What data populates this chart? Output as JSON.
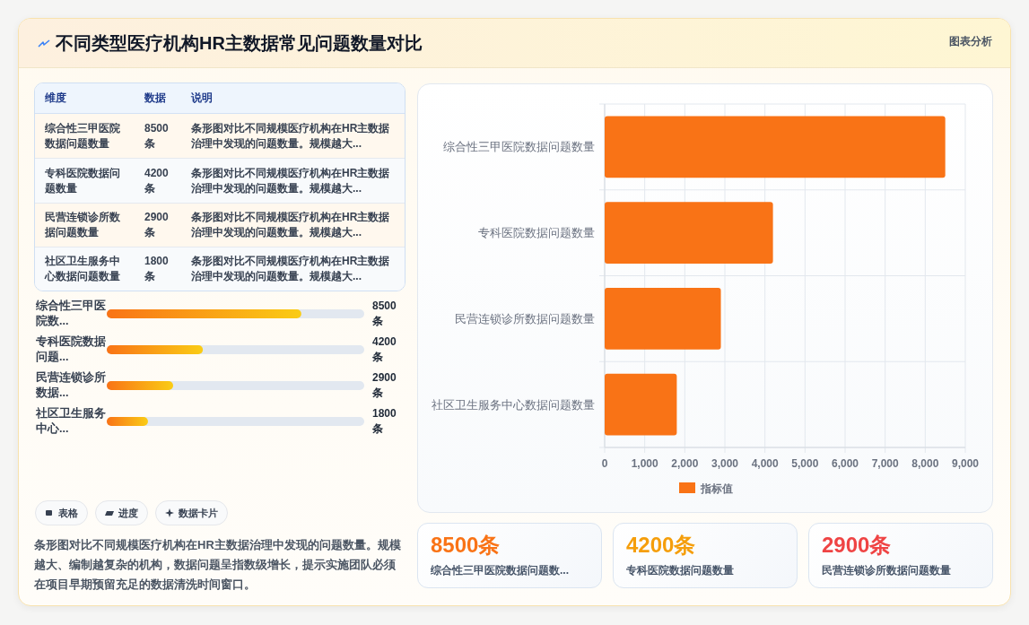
{
  "chart_data": [
    {
      "type": "other",
      "title": "不同类型医疗机构HR主数据常见问题数量对比",
      "annotations": [
        "图表分析"
      ],
      "categories": [
        "维度",
        "数据",
        "说明"
      ],
      "cell_labels": [
        [
          "综合性三甲医院数据问题数量",
          "8500条",
          "条形图对比不同规模医疗机构在HR主数据治理中发现的问题数量。规模越大..."
        ],
        [
          "专科医院数据问题数量",
          "4200条",
          "条形图对比不同规模医疗机构在HR主数据治理中发现的问题数量。规模越大..."
        ],
        [
          "民营连锁诊所数据问题数量",
          "2900条",
          "条形图对比不同规模医疗机构在HR主数据治理中发现的问题数量。规模越大..."
        ],
        [
          "社区卫生服务中心数据问题数量",
          "1800条",
          "条形图对比不同规模医疗机构在HR主数据治理中发现的问题数量。规模越大..."
        ]
      ]
    },
    {
      "type": "bar",
      "orientation": "horizontal",
      "categories": [
        "综合性三甲医院数...",
        "专科医院数据问题...",
        "民营连锁诊所数据...",
        "社区卫生服务中心..."
      ],
      "values": [
        8500,
        4200,
        2900,
        1800
      ],
      "value_labels": [
        "8500条",
        "4200条",
        "2900条",
        "1800条"
      ],
      "color": "#f97316",
      "xlim": [
        0,
        11250
      ],
      "tick_labels": "y",
      "annotations": [
        "表格",
        "进度",
        "数据卡片",
        "条形图对比不同规模医疗机构在HR主数据治理中发现的问题数量。规模越大、编制越复杂的机构，数据问题呈指数级增长，提示实施团队必须在项目早期预留充足的数据清洗时间窗口。"
      ]
    },
    {
      "type": "bar",
      "orientation": "horizontal",
      "categories": [
        "综合性三甲医院数据问题数量",
        "专科医院数据问题数量",
        "民营连锁诊所数据问题数量",
        "社区卫生服务中心数据问题数量"
      ],
      "series": [
        {
          "name": "指标值",
          "color": "#f97316",
          "values": [
            8500,
            4200,
            2900,
            1800
          ]
        }
      ],
      "xlim": [
        0,
        9000
      ],
      "xticks": [
        0,
        {
          "value": 1000,
          "label": "1,000"
        },
        {
          "value": 2000,
          "label": "2,000"
        },
        {
          "value": 3000,
          "label": "3,000"
        },
        {
          "value": 4000,
          "label": "4,000"
        },
        {
          "value": 5000,
          "label": "5,000"
        },
        {
          "value": 6000,
          "label": "6,000"
        },
        {
          "value": 7000,
          "label": "7,000"
        },
        {
          "value": 8000,
          "label": "8,000"
        },
        {
          "value": 9000,
          "label": "9,000"
        }
      ],
      "grid": true,
      "legend": "bottom"
    },
    {
      "type": "other",
      "value_labels": [
        "8500条",
        "4200条",
        "2900条"
      ],
      "colors": [
        "#f97316",
        "#f59e0b",
        "#ef4444"
      ],
      "annotations": [
        "综合性三甲医院数据问题数...",
        "专科医院数据问题数量",
        "民营连锁诊所数据问题数量"
      ]
    }
  ]
}
